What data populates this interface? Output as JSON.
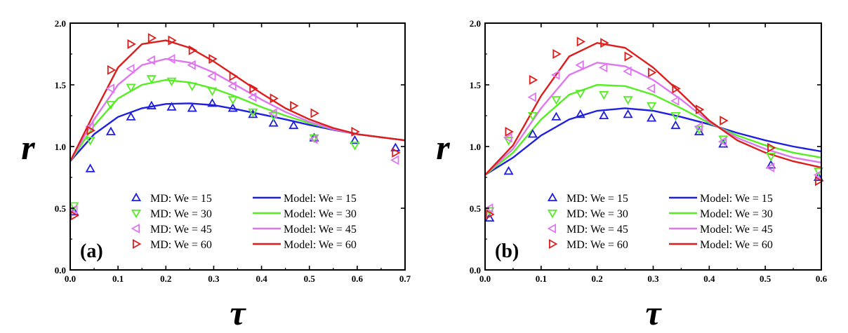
{
  "chart_data": [
    {
      "type": "scatter",
      "panel_label": "(a)",
      "xlabel": "τ",
      "ylabel": "r",
      "xlim": [
        0.0,
        0.7
      ],
      "ylim": [
        0.0,
        2.0
      ],
      "xticks": [
        "0.0",
        "0.1",
        "0.2",
        "0.3",
        "0.4",
        "0.5",
        "0.6",
        "0.7"
      ],
      "yticks": [
        "0.0",
        "0.5",
        "1.0",
        "1.5",
        "2.0"
      ],
      "md_series": [
        {
          "name": "MD: We = 15",
          "color": "#1f1fe0",
          "marker": "triangle-up",
          "x": [
            0.008,
            0.042,
            0.085,
            0.127,
            0.17,
            0.212,
            0.255,
            0.297,
            0.34,
            0.382,
            0.425,
            0.467,
            0.51,
            0.595,
            0.68
          ],
          "y": [
            0.47,
            0.82,
            1.12,
            1.24,
            1.33,
            1.32,
            1.31,
            1.35,
            1.31,
            1.26,
            1.19,
            1.17,
            1.07,
            1.05,
            0.99
          ]
        },
        {
          "name": "MD: We = 30",
          "color": "#55ee22",
          "marker": "triangle-down",
          "x": [
            0.008,
            0.042,
            0.085,
            0.127,
            0.17,
            0.212,
            0.255,
            0.297,
            0.34,
            0.382,
            0.425,
            0.51,
            0.595
          ],
          "y": [
            0.52,
            1.05,
            1.34,
            1.48,
            1.55,
            1.53,
            1.49,
            1.45,
            1.38,
            1.28,
            1.25,
            1.07,
            1.01
          ]
        },
        {
          "name": "MD: We = 45",
          "color": "#dd77ee",
          "marker": "triangle-left",
          "x": [
            0.008,
            0.042,
            0.085,
            0.127,
            0.17,
            0.212,
            0.255,
            0.297,
            0.34,
            0.382,
            0.425,
            0.51,
            0.68
          ],
          "y": [
            0.49,
            1.16,
            1.47,
            1.63,
            1.7,
            1.71,
            1.66,
            1.57,
            1.49,
            1.4,
            1.27,
            1.06,
            0.89
          ]
        },
        {
          "name": "MD: We = 60",
          "color": "#dd1c1c",
          "marker": "triangle-right",
          "x": [
            0.008,
            0.042,
            0.085,
            0.127,
            0.17,
            0.212,
            0.255,
            0.297,
            0.34,
            0.382,
            0.425,
            0.467,
            0.51,
            0.595,
            0.68
          ],
          "y": [
            0.44,
            1.13,
            1.62,
            1.83,
            1.88,
            1.86,
            1.78,
            1.71,
            1.57,
            1.47,
            1.39,
            1.33,
            1.27,
            1.12,
            0.95
          ]
        }
      ],
      "model_series": [
        {
          "name": "Model: We = 15",
          "color": "#1f1fe0",
          "x": [
            0.0,
            0.05,
            0.1,
            0.15,
            0.2,
            0.25,
            0.3,
            0.35,
            0.4,
            0.45,
            0.5,
            0.55,
            0.6,
            0.65,
            0.7
          ],
          "y": [
            0.88,
            1.1,
            1.24,
            1.31,
            1.345,
            1.35,
            1.335,
            1.3,
            1.26,
            1.22,
            1.175,
            1.135,
            1.1,
            1.075,
            1.05
          ]
        },
        {
          "name": "Model: We = 30",
          "color": "#55ee22",
          "x": [
            0.0,
            0.05,
            0.1,
            0.15,
            0.2,
            0.25,
            0.3,
            0.35,
            0.4,
            0.45,
            0.5,
            0.55,
            0.6,
            0.65,
            0.7
          ],
          "y": [
            0.88,
            1.17,
            1.39,
            1.5,
            1.54,
            1.52,
            1.47,
            1.4,
            1.32,
            1.25,
            1.19,
            1.14,
            1.1,
            1.075,
            1.05
          ]
        },
        {
          "name": "Model: We = 45",
          "color": "#dd77ee",
          "x": [
            0.0,
            0.05,
            0.1,
            0.15,
            0.2,
            0.25,
            0.3,
            0.35,
            0.4,
            0.45,
            0.5,
            0.55,
            0.6,
            0.65,
            0.7
          ],
          "y": [
            0.88,
            1.22,
            1.5,
            1.66,
            1.71,
            1.68,
            1.6,
            1.49,
            1.38,
            1.28,
            1.2,
            1.14,
            1.1,
            1.075,
            1.05
          ]
        },
        {
          "name": "Model: We = 60",
          "color": "#dd1c1c",
          "x": [
            0.0,
            0.05,
            0.1,
            0.15,
            0.2,
            0.25,
            0.3,
            0.35,
            0.4,
            0.45,
            0.5,
            0.55,
            0.6,
            0.65,
            0.7
          ],
          "y": [
            0.88,
            1.27,
            1.64,
            1.83,
            1.86,
            1.8,
            1.69,
            1.56,
            1.43,
            1.31,
            1.22,
            1.15,
            1.1,
            1.075,
            1.05
          ]
        }
      ],
      "legend": {
        "md": [
          "MD: We = 15",
          "MD: We = 30",
          "MD: We = 45",
          "MD: We = 60"
        ],
        "model": [
          "Model: We = 15",
          "Model: We = 30",
          "Model: We = 45",
          "Model: We = 60"
        ],
        "position": "bottom-right"
      }
    },
    {
      "type": "scatter",
      "panel_label": "(b)",
      "xlabel": "τ",
      "ylabel": "r",
      "xlim": [
        0.0,
        0.6
      ],
      "ylim": [
        0.0,
        2.0
      ],
      "xticks": [
        "0.0",
        "0.1",
        "0.2",
        "0.3",
        "0.4",
        "0.5",
        "0.6"
      ],
      "yticks": [
        "0.0",
        "0.5",
        "1.0",
        "1.5",
        "2.0"
      ],
      "md_series": [
        {
          "name": "MD: We = 15",
          "color": "#1f1fe0",
          "marker": "triangle-up",
          "x": [
            0.008,
            0.042,
            0.085,
            0.127,
            0.17,
            0.212,
            0.255,
            0.297,
            0.34,
            0.382,
            0.425,
            0.51,
            0.595
          ],
          "y": [
            0.42,
            0.8,
            1.1,
            1.24,
            1.26,
            1.25,
            1.26,
            1.23,
            1.17,
            1.12,
            1.02,
            0.85,
            0.75
          ]
        },
        {
          "name": "MD: We = 30",
          "color": "#55ee22",
          "marker": "triangle-down",
          "x": [
            0.008,
            0.042,
            0.085,
            0.127,
            0.17,
            0.212,
            0.255,
            0.297,
            0.34,
            0.382,
            0.425,
            0.51,
            0.595
          ],
          "y": [
            0.48,
            1.05,
            1.25,
            1.38,
            1.43,
            1.42,
            1.38,
            1.33,
            1.25,
            1.14,
            1.06,
            0.92,
            0.8
          ]
        },
        {
          "name": "MD: We = 45",
          "color": "#dd77ee",
          "marker": "triangle-left",
          "x": [
            0.008,
            0.042,
            0.085,
            0.127,
            0.17,
            0.212,
            0.255,
            0.297,
            0.34,
            0.382,
            0.425,
            0.51,
            0.595
          ],
          "y": [
            0.5,
            1.07,
            1.4,
            1.58,
            1.66,
            1.64,
            1.61,
            1.47,
            1.37,
            1.16,
            1.04,
            0.83,
            0.77
          ]
        },
        {
          "name": "MD: We = 60",
          "color": "#dd1c1c",
          "marker": "triangle-right",
          "x": [
            0.008,
            0.042,
            0.085,
            0.127,
            0.17,
            0.212,
            0.255,
            0.297,
            0.34,
            0.382,
            0.425,
            0.51,
            0.595
          ],
          "y": [
            0.45,
            1.12,
            1.54,
            1.75,
            1.85,
            1.84,
            1.73,
            1.6,
            1.47,
            1.3,
            1.21,
            0.99,
            0.72
          ]
        }
      ],
      "model_series": [
        {
          "name": "Model: We = 15",
          "color": "#1f1fe0",
          "x": [
            0.0,
            0.05,
            0.1,
            0.15,
            0.2,
            0.25,
            0.3,
            0.35,
            0.4,
            0.45,
            0.5,
            0.55,
            0.6
          ],
          "y": [
            0.77,
            0.91,
            1.09,
            1.22,
            1.29,
            1.31,
            1.29,
            1.24,
            1.18,
            1.11,
            1.05,
            1.0,
            0.96
          ]
        },
        {
          "name": "Model: We = 30",
          "color": "#55ee22",
          "x": [
            0.0,
            0.05,
            0.1,
            0.15,
            0.2,
            0.25,
            0.3,
            0.35,
            0.4,
            0.45,
            0.5,
            0.55,
            0.6
          ],
          "y": [
            0.77,
            0.95,
            1.22,
            1.42,
            1.5,
            1.49,
            1.42,
            1.31,
            1.19,
            1.09,
            1.01,
            0.95,
            0.91
          ]
        },
        {
          "name": "Model: We = 45",
          "color": "#dd77ee",
          "x": [
            0.0,
            0.05,
            0.1,
            0.15,
            0.2,
            0.25,
            0.3,
            0.35,
            0.4,
            0.45,
            0.5,
            0.55,
            0.6
          ],
          "y": [
            0.77,
            0.98,
            1.31,
            1.58,
            1.68,
            1.65,
            1.54,
            1.38,
            1.2,
            1.07,
            0.98,
            0.91,
            0.87
          ]
        },
        {
          "name": "Model: We = 60",
          "color": "#dd1c1c",
          "x": [
            0.0,
            0.05,
            0.1,
            0.15,
            0.2,
            0.25,
            0.3,
            0.35,
            0.4,
            0.45,
            0.5,
            0.55,
            0.6
          ],
          "y": [
            0.77,
            1.01,
            1.41,
            1.73,
            1.84,
            1.8,
            1.64,
            1.43,
            1.21,
            1.05,
            0.95,
            0.88,
            0.83
          ]
        }
      ],
      "legend": {
        "md": [
          "MD: We = 15",
          "MD: We = 30",
          "MD: We = 45",
          "MD: We = 60"
        ],
        "model": [
          "Model: We = 15",
          "Model: We = 30",
          "Model: We = 45",
          "Model: We = 60"
        ],
        "position": "bottom-right"
      }
    }
  ]
}
